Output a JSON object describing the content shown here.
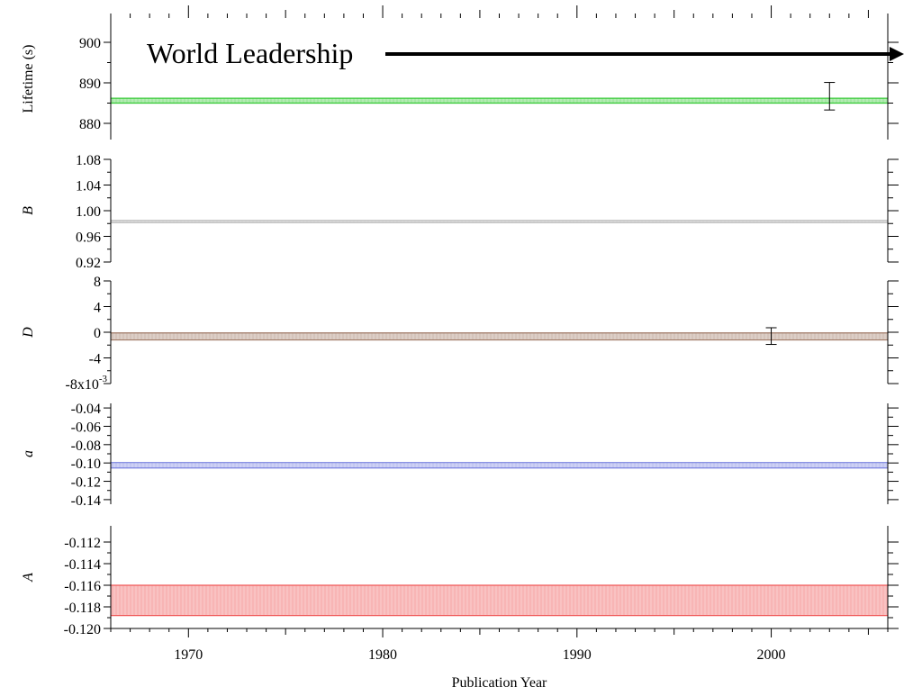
{
  "annotation": "World Leadership",
  "colors": {
    "lifetime": "#35c935",
    "B": "#b8b8b8",
    "D": "#a07a66",
    "a": "#7a82e0",
    "A": "#f05a5a",
    "axis": "#000000",
    "arrow": "#000000"
  },
  "chart_data": [
    {
      "type": "band",
      "ylabel": "Lifetime (s)",
      "ylabel_italic": false,
      "ylim": [
        876,
        906
      ],
      "yticks": [
        880,
        890,
        900
      ],
      "ytick_labels": [
        "880",
        "890",
        "900"
      ],
      "band": [
        885.0,
        886.2
      ],
      "error_bar": {
        "x": 2003,
        "y": 886.7,
        "err": 3.4
      }
    },
    {
      "type": "band",
      "ylabel": "B",
      "ylabel_italic": true,
      "ylim": [
        0.92,
        1.08
      ],
      "yticks": [
        0.92,
        0.96,
        1.0,
        1.04,
        1.08
      ],
      "ytick_labels": [
        "0.92",
        "0.96",
        "1.00",
        "1.04",
        "1.08"
      ],
      "band": [
        0.9813,
        0.9847
      ]
    },
    {
      "type": "band",
      "ylabel": "D",
      "ylabel_italic": true,
      "ylim": [
        -0.008,
        0.008
      ],
      "yticks": [
        -0.008,
        -0.004,
        0,
        0.004,
        0.008
      ],
      "ytick_labels": [
        "-8x10",
        "-4",
        "0",
        "4",
        "8"
      ],
      "ytick_superscript": "-3",
      "band": [
        -0.0012,
        -0.0001
      ],
      "error_bar": {
        "x": 2000,
        "y": -0.0006,
        "err": 0.0013
      }
    },
    {
      "type": "band",
      "ylabel": "a",
      "ylabel_italic": true,
      "ylim": [
        -0.145,
        -0.035
      ],
      "yticks": [
        -0.14,
        -0.12,
        -0.1,
        -0.08,
        -0.06,
        -0.04
      ],
      "ytick_labels": [
        "-0.14",
        "-0.12",
        "-0.10",
        "-0.08",
        "-0.06",
        "-0.04"
      ],
      "band": [
        -0.1055,
        -0.0995
      ]
    },
    {
      "type": "band",
      "ylabel": "A",
      "ylabel_italic": true,
      "ylim": [
        -0.12,
        -0.1105
      ],
      "yticks": [
        -0.12,
        -0.118,
        -0.116,
        -0.114,
        -0.112
      ],
      "ytick_labels": [
        "-0.120",
        "-0.118",
        "-0.116",
        "-0.114",
        "-0.112"
      ],
      "band": [
        -0.1188,
        -0.116
      ]
    }
  ],
  "x_axis": {
    "xlabel": "Publication Year",
    "xlim": [
      1966,
      2006
    ],
    "xticks": [
      1970,
      1980,
      1990,
      2000
    ],
    "xtick_labels": [
      "1970",
      "1980",
      "1990",
      "2000"
    ]
  }
}
